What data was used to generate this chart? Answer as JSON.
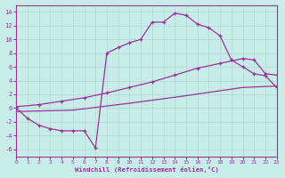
{
  "bg_color": "#c8ece8",
  "line_color": "#993399",
  "grid_color": "#b0d8d4",
  "xlabel": "Windchill (Refroidissement éolien,°C)",
  "xlim": [
    0,
    23
  ],
  "ylim": [
    -7,
    15
  ],
  "xticks": [
    0,
    1,
    2,
    3,
    4,
    5,
    6,
    7,
    8,
    9,
    10,
    11,
    12,
    13,
    14,
    15,
    16,
    17,
    18,
    19,
    20,
    21,
    22,
    23
  ],
  "yticks": [
    -6,
    -4,
    -2,
    0,
    2,
    4,
    6,
    8,
    10,
    12,
    14
  ],
  "line1_x": [
    0,
    1,
    2,
    3,
    4,
    5,
    6,
    7,
    8,
    9,
    10,
    11,
    12,
    13,
    14,
    15,
    16,
    17,
    18,
    19,
    20,
    21,
    22,
    23
  ],
  "line1_y": [
    0.0,
    -1.5,
    -2.5,
    -3.0,
    -3.3,
    -3.3,
    -3.3,
    -5.8,
    8.0,
    8.8,
    9.5,
    10.0,
    12.5,
    12.5,
    13.8,
    13.5,
    12.2,
    11.7,
    10.5,
    7.0,
    6.0,
    5.0,
    4.7,
    3.0
  ],
  "line2_x": [
    0,
    2,
    4,
    6,
    8,
    10,
    12,
    14,
    16,
    18,
    20,
    21,
    22,
    23
  ],
  "line2_y": [
    0.2,
    0.5,
    1.0,
    1.5,
    2.2,
    3.0,
    3.8,
    4.8,
    5.8,
    6.5,
    7.2,
    7.0,
    5.0,
    4.8
  ],
  "line3_x": [
    0,
    5,
    10,
    15,
    20,
    23
  ],
  "line3_y": [
    -0.5,
    -0.3,
    0.7,
    1.8,
    3.0,
    3.2
  ]
}
